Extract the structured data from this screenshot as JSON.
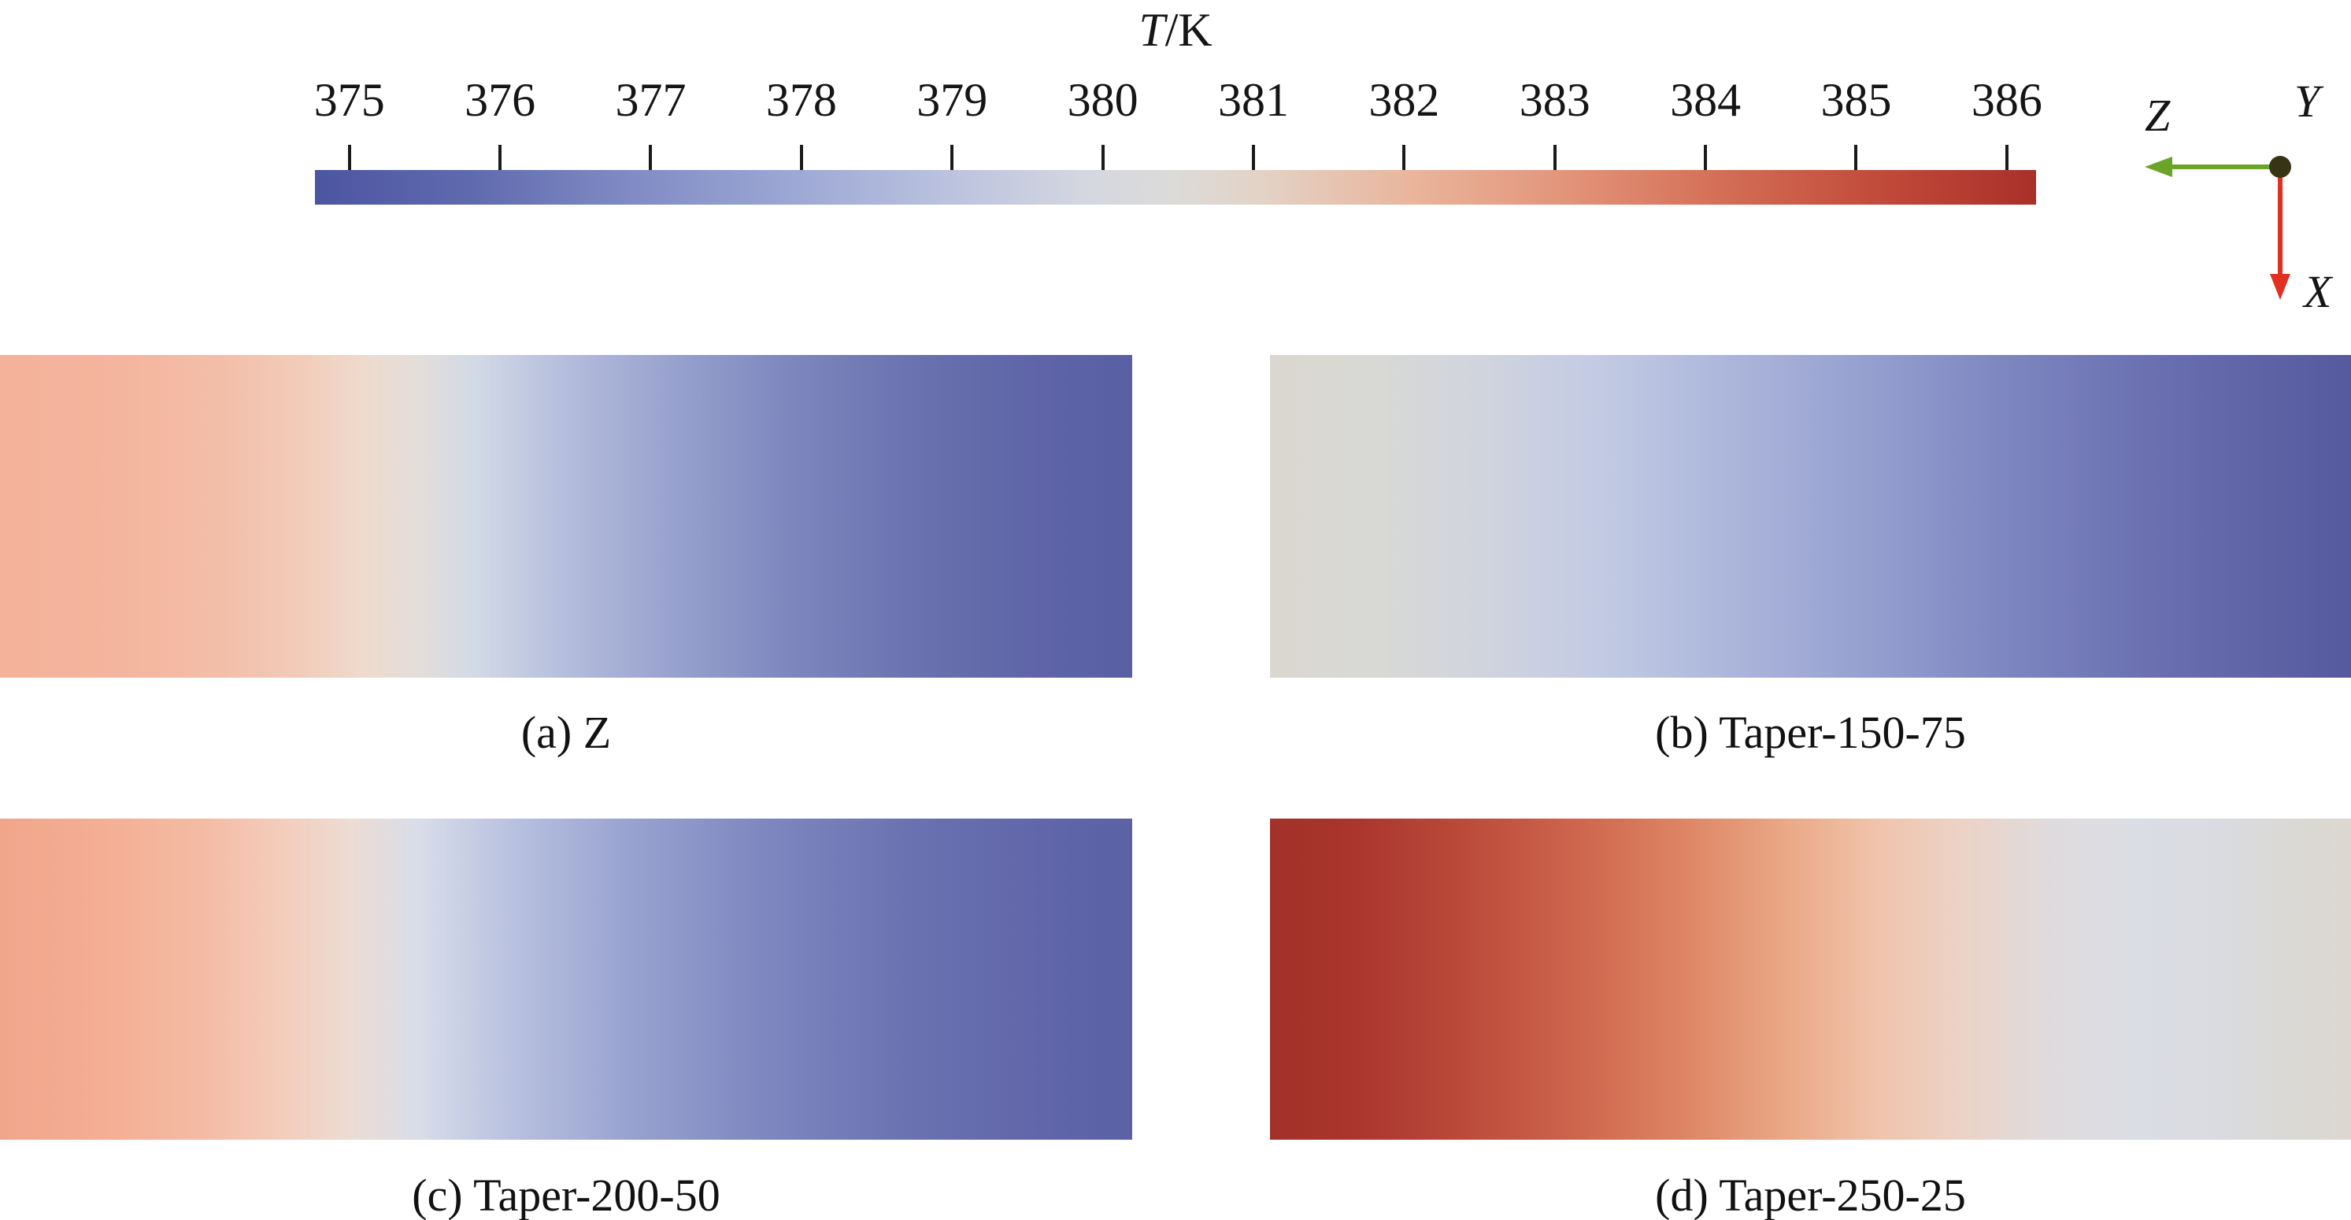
{
  "chart_data": {
    "type": "heatmap",
    "description": "Four 2D temperature contour strips sharing one horizontal cool-to-warm colorbar",
    "colorbar": {
      "title_symbol": "T",
      "title_unit": "/K",
      "units": "K",
      "min": 375,
      "max": 386,
      "tick_labels": [
        "375",
        "376",
        "377",
        "378",
        "379",
        "380",
        "381",
        "382",
        "383",
        "384",
        "385",
        "386"
      ],
      "tick_start_pct": 2.0,
      "tick_end_pct": 98.3,
      "colormap": "cool-to-warm (blue - light gray - red)",
      "gradient_stops": [
        {
          "pos": 0,
          "color": "#4c55a0"
        },
        {
          "pos": 9,
          "color": "#5f6aae"
        },
        {
          "pos": 18,
          "color": "#7f8ac4"
        },
        {
          "pos": 27,
          "color": "#9aa5d3"
        },
        {
          "pos": 36,
          "color": "#b8c0de"
        },
        {
          "pos": 45,
          "color": "#d5d7e0"
        },
        {
          "pos": 50,
          "color": "#dcdbd8"
        },
        {
          "pos": 55,
          "color": "#e3d2c6"
        },
        {
          "pos": 64,
          "color": "#e9b49a"
        },
        {
          "pos": 73,
          "color": "#e29379"
        },
        {
          "pos": 82,
          "color": "#d36d55"
        },
        {
          "pos": 91,
          "color": "#c14a3a"
        },
        {
          "pos": 100,
          "color": "#a93029"
        }
      ]
    },
    "panels": [
      {
        "id": "a",
        "caption": "(a) Z",
        "estimated_T_left_K": 382.8,
        "estimated_T_right_K": 375.8,
        "gradient_stops": [
          {
            "pos": 0,
            "color": "#f4b29a"
          },
          {
            "pos": 10,
            "color": "#f4b49d"
          },
          {
            "pos": 20,
            "color": "#f3bfa9"
          },
          {
            "pos": 27,
            "color": "#f2cdbb"
          },
          {
            "pos": 32,
            "color": "#eedacd"
          },
          {
            "pos": 37,
            "color": "#e3ded9"
          },
          {
            "pos": 42,
            "color": "#d2d9e6"
          },
          {
            "pos": 50,
            "color": "#b4bddc"
          },
          {
            "pos": 60,
            "color": "#96a0cd"
          },
          {
            "pos": 70,
            "color": "#7d86bd"
          },
          {
            "pos": 82,
            "color": "#6870ae"
          },
          {
            "pos": 92,
            "color": "#5e64a7"
          },
          {
            "pos": 100,
            "color": "#595fa3"
          }
        ]
      },
      {
        "id": "b",
        "caption": "(b) Taper-150-75",
        "estimated_T_left_K": 380.8,
        "estimated_T_right_K": 375.6,
        "gradient_stops": [
          {
            "pos": 0,
            "color": "#dad7d0"
          },
          {
            "pos": 10,
            "color": "#d8d8d5"
          },
          {
            "pos": 20,
            "color": "#d0d4de"
          },
          {
            "pos": 30,
            "color": "#c3cbe4"
          },
          {
            "pos": 42,
            "color": "#adb7db"
          },
          {
            "pos": 55,
            "color": "#96a0d0"
          },
          {
            "pos": 68,
            "color": "#7e86c0"
          },
          {
            "pos": 82,
            "color": "#696fb0"
          },
          {
            "pos": 100,
            "color": "#55599e"
          }
        ]
      },
      {
        "id": "c",
        "caption": "(c) Taper-200-50",
        "estimated_T_left_K": 383.2,
        "estimated_T_right_K": 375.8,
        "gradient_stops": [
          {
            "pos": 0,
            "color": "#f1a68b"
          },
          {
            "pos": 10,
            "color": "#f4af95"
          },
          {
            "pos": 18,
            "color": "#f4bba4"
          },
          {
            "pos": 25,
            "color": "#f3cdbc"
          },
          {
            "pos": 31,
            "color": "#ecdcd3"
          },
          {
            "pos": 37,
            "color": "#d8dde9"
          },
          {
            "pos": 45,
            "color": "#b9c2e0"
          },
          {
            "pos": 55,
            "color": "#9aa4d1"
          },
          {
            "pos": 67,
            "color": "#7f88c0"
          },
          {
            "pos": 80,
            "color": "#6b72b2"
          },
          {
            "pos": 92,
            "color": "#6066a9"
          },
          {
            "pos": 100,
            "color": "#5b61a5"
          }
        ]
      },
      {
        "id": "d",
        "caption": "(d) Taper-250-25",
        "estimated_T_left_K": 386.0,
        "estimated_T_right_K": 380.2,
        "gradient_stops": [
          {
            "pos": 0,
            "color": "#a23129"
          },
          {
            "pos": 8,
            "color": "#aa362d"
          },
          {
            "pos": 18,
            "color": "#bb4a3a"
          },
          {
            "pos": 28,
            "color": "#cd644c"
          },
          {
            "pos": 38,
            "color": "#dd8463"
          },
          {
            "pos": 48,
            "color": "#eaa987"
          },
          {
            "pos": 56,
            "color": "#f0c3ab"
          },
          {
            "pos": 64,
            "color": "#ecd3c6"
          },
          {
            "pos": 72,
            "color": "#dfdbdd"
          },
          {
            "pos": 80,
            "color": "#dbdde4"
          },
          {
            "pos": 88,
            "color": "#d9dbe0"
          },
          {
            "pos": 94,
            "color": "#dad9d6"
          },
          {
            "pos": 100,
            "color": "#dcd8d0"
          }
        ]
      }
    ]
  },
  "orientation_axes": {
    "z": {
      "label": "Z",
      "direction": "left",
      "color": "#6aa428"
    },
    "x": {
      "label": "X",
      "direction": "down",
      "color": "#e03020"
    },
    "y": {
      "label": "Y",
      "direction": "out-of-screen",
      "color": "#373415"
    }
  }
}
